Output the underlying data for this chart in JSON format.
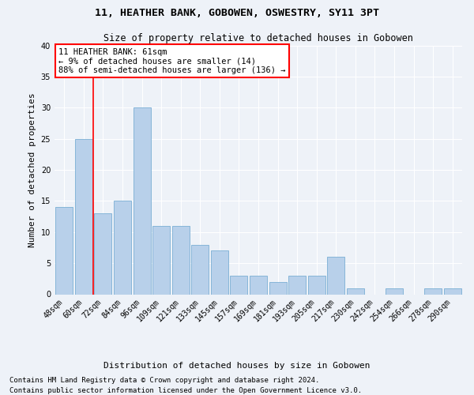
{
  "title": "11, HEATHER BANK, GOBOWEN, OSWESTRY, SY11 3PT",
  "subtitle": "Size of property relative to detached houses in Gobowen",
  "xlabel": "Distribution of detached houses by size in Gobowen",
  "ylabel": "Number of detached properties",
  "categories": [
    "48sqm",
    "60sqm",
    "72sqm",
    "84sqm",
    "96sqm",
    "109sqm",
    "121sqm",
    "133sqm",
    "145sqm",
    "157sqm",
    "169sqm",
    "181sqm",
    "193sqm",
    "205sqm",
    "217sqm",
    "230sqm",
    "242sqm",
    "254sqm",
    "266sqm",
    "278sqm",
    "290sqm"
  ],
  "values": [
    14,
    25,
    13,
    15,
    30,
    11,
    11,
    8,
    7,
    3,
    3,
    2,
    3,
    3,
    6,
    1,
    0,
    1,
    0,
    1,
    1
  ],
  "bar_color": "#b8d0ea",
  "bar_edge_color": "#7aaed4",
  "background_color": "#eef2f8",
  "grid_color": "#ffffff",
  "red_line_x": 1.5,
  "ylim": [
    0,
    40
  ],
  "yticks": [
    0,
    5,
    10,
    15,
    20,
    25,
    30,
    35,
    40
  ],
  "annotation_title": "11 HEATHER BANK: 61sqm",
  "annotation_line1": "← 9% of detached houses are smaller (14)",
  "annotation_line2": "88% of semi-detached houses are larger (136) →",
  "footer_line1": "Contains HM Land Registry data © Crown copyright and database right 2024.",
  "footer_line2": "Contains public sector information licensed under the Open Government Licence v3.0.",
  "title_fontsize": 9.5,
  "subtitle_fontsize": 8.5,
  "axis_label_fontsize": 8,
  "tick_fontsize": 7,
  "annotation_fontsize": 7.5,
  "footer_fontsize": 6.5
}
